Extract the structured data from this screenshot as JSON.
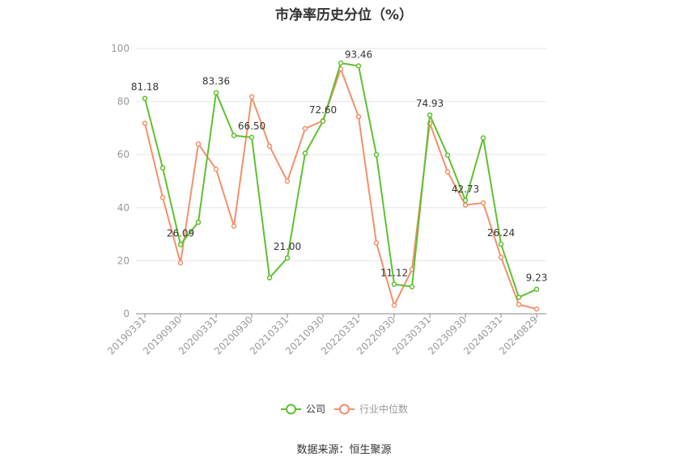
{
  "title": "市净率历史分位（%）",
  "source": "数据来源：恒生聚源",
  "colors": {
    "company": "#5ec12f",
    "industry": "#f4906a",
    "grid": "#e4e6ec",
    "axis": "#999999",
    "text": "#333333"
  },
  "chart_data": {
    "type": "line",
    "title": "市净率历史分位（%）",
    "ylim": [
      0,
      100
    ],
    "y_ticks": [
      0,
      20,
      40,
      60,
      80,
      100
    ],
    "grid": true,
    "legend_position": "bottom",
    "x_tick_labels": [
      "20190331",
      "20190930",
      "20200331",
      "20200930",
      "20210331",
      "20210930",
      "20220331",
      "20220930",
      "20230331",
      "20230930",
      "20240331",
      "20240829"
    ],
    "series": [
      {
        "name": "公司",
        "color": "#5ec12f",
        "values": [
          81.18,
          55,
          26.09,
          34.5,
          83.36,
          67.2,
          66.5,
          13.6,
          21.0,
          60.5,
          72.6,
          94.5,
          93.46,
          60.0,
          11.12,
          10.2,
          74.93,
          59.8,
          42.73,
          66.3,
          26.24,
          6.2,
          9.23
        ],
        "labels": [
          "81.18",
          "",
          "26.09",
          "",
          "83.36",
          "",
          "66.50",
          "",
          "21.00",
          "",
          "72.60",
          "",
          "93.46",
          "",
          "11.12",
          "",
          "74.93",
          "",
          "42.73",
          "",
          "26.24",
          "",
          "9.23"
        ]
      },
      {
        "name": "行业中位数",
        "color": "#f4906a",
        "values": [
          71.8,
          43.8,
          19.2,
          64.0,
          54.5,
          33.0,
          81.8,
          63.2,
          50.0,
          69.8,
          72.8,
          92.3,
          74.3,
          26.7,
          3.2,
          16.7,
          71.8,
          53.5,
          41.0,
          41.8,
          21.3,
          3.5,
          1.8
        ]
      }
    ]
  }
}
